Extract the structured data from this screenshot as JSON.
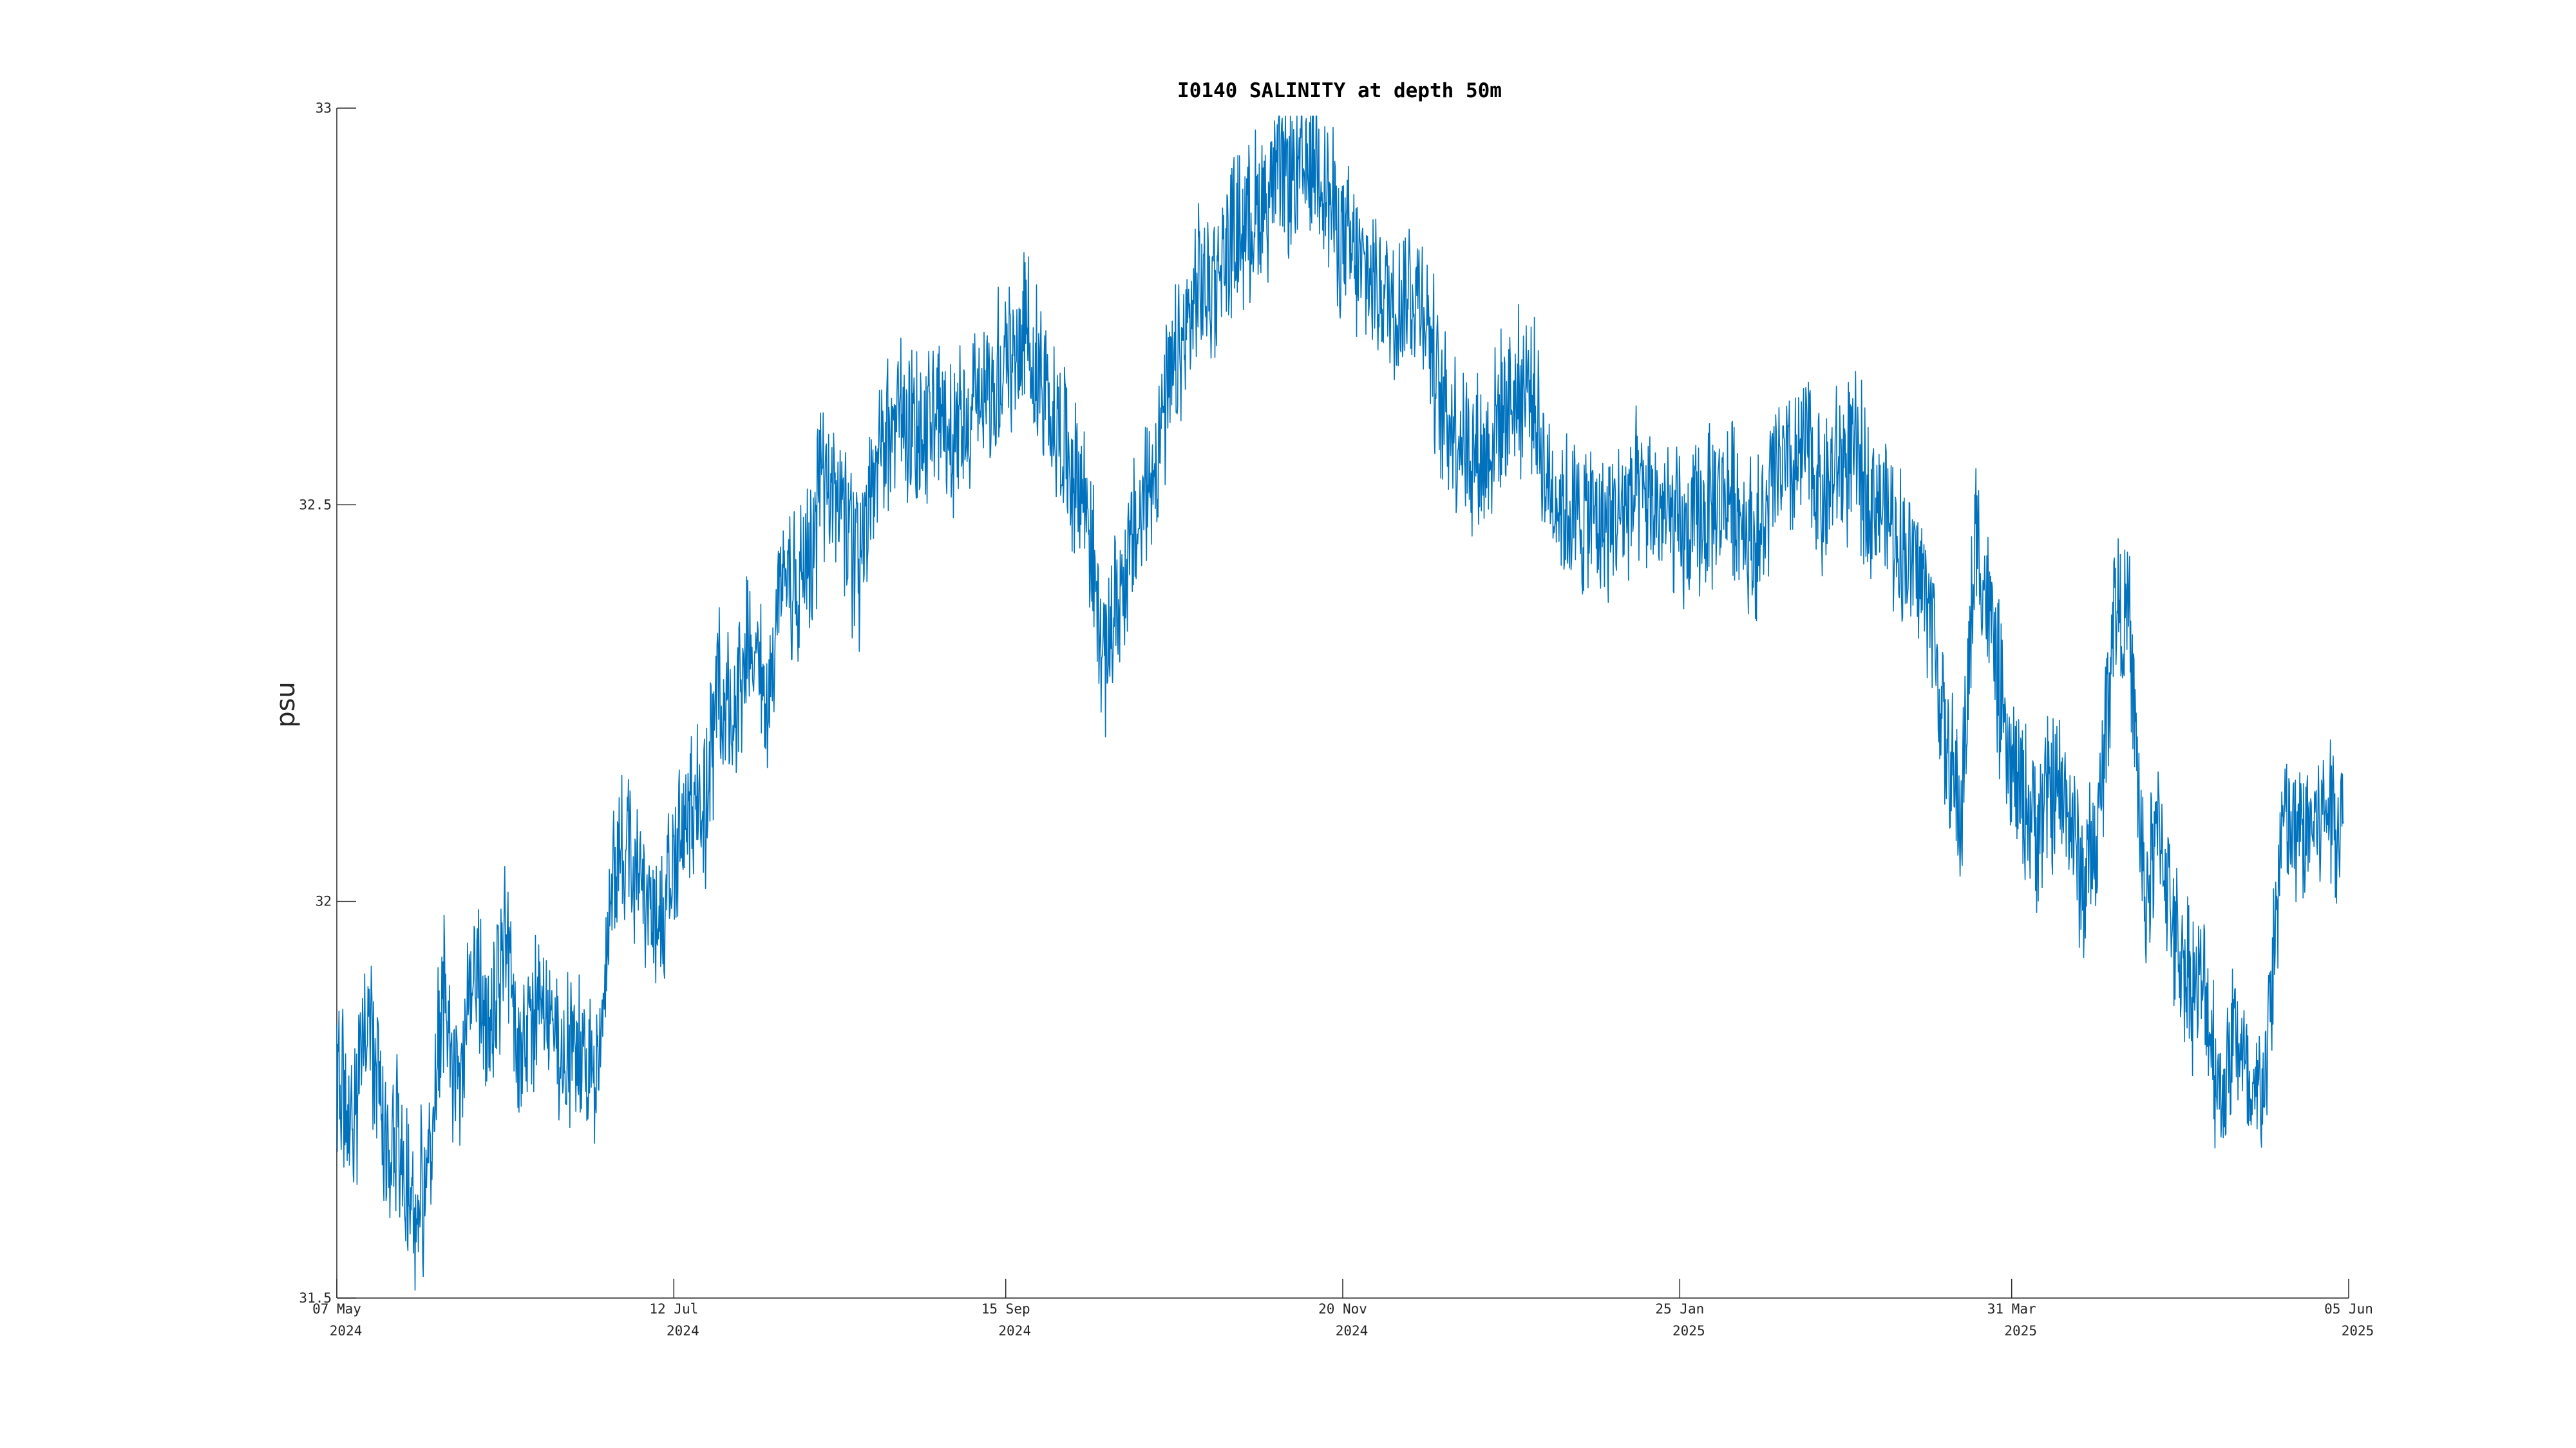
{
  "chart_data": {
    "type": "line",
    "title": "I0140 SALINITY at depth 50m",
    "xlabel": "",
    "ylabel": "psu",
    "xlim": [
      "2024-05-07",
      "2025-06-05"
    ],
    "ylim": [
      31.5,
      33
    ],
    "grid": false,
    "legend": "none",
    "y_ticks": [
      {
        "value": 31.5,
        "label": "31.5"
      },
      {
        "value": 32,
        "label": "32"
      },
      {
        "value": 32.5,
        "label": "32.5"
      },
      {
        "value": 33,
        "label": "33"
      }
    ],
    "x_ticks": [
      {
        "date": "2024-05-07",
        "line1": "07 May",
        "line2": "2024"
      },
      {
        "date": "2024-07-12",
        "line1": "12 Jul",
        "line2": "2024"
      },
      {
        "date": "2024-09-15",
        "line1": "15 Sep",
        "line2": "2024"
      },
      {
        "date": "2024-11-20",
        "line1": "20 Nov",
        "line2": "2024"
      },
      {
        "date": "2025-01-25",
        "line1": "25 Jan",
        "line2": "2025"
      },
      {
        "date": "2025-03-31",
        "line1": "31 Mar",
        "line2": "2025"
      },
      {
        "date": "2025-06-05",
        "line1": "05 Jun",
        "line2": "2025"
      }
    ],
    "series": [
      {
        "color": "#0072BD",
        "x": [
          "2024-05-07",
          "2024-05-10",
          "2024-05-13",
          "2024-05-16",
          "2024-05-19",
          "2024-05-22",
          "2024-05-25",
          "2024-05-28",
          "2024-05-31",
          "2024-06-03",
          "2024-06-06",
          "2024-06-09",
          "2024-06-12",
          "2024-06-15",
          "2024-06-18",
          "2024-06-21",
          "2024-06-24",
          "2024-06-27",
          "2024-06-30",
          "2024-07-03",
          "2024-07-06",
          "2024-07-09",
          "2024-07-12",
          "2024-07-15",
          "2024-07-18",
          "2024-07-21",
          "2024-07-24",
          "2024-07-27",
          "2024-07-30",
          "2024-08-02",
          "2024-08-05",
          "2024-08-08",
          "2024-08-11",
          "2024-08-14",
          "2024-08-17",
          "2024-08-20",
          "2024-08-23",
          "2024-08-26",
          "2024-08-29",
          "2024-09-01",
          "2024-09-04",
          "2024-09-07",
          "2024-09-10",
          "2024-09-13",
          "2024-09-16",
          "2024-09-19",
          "2024-09-22",
          "2024-09-25",
          "2024-09-28",
          "2024-10-01",
          "2024-10-04",
          "2024-10-07",
          "2024-10-10",
          "2024-10-13",
          "2024-10-16",
          "2024-10-19",
          "2024-10-22",
          "2024-10-25",
          "2024-10-28",
          "2024-10-31",
          "2024-11-03",
          "2024-11-06",
          "2024-11-09",
          "2024-11-12",
          "2024-11-15",
          "2024-11-18",
          "2024-11-21",
          "2024-11-24",
          "2024-11-27",
          "2024-11-30",
          "2024-12-03",
          "2024-12-06",
          "2024-12-09",
          "2024-12-12",
          "2024-12-15",
          "2024-12-18",
          "2024-12-21",
          "2024-12-24",
          "2024-12-27",
          "2024-12-30",
          "2025-01-02",
          "2025-01-05",
          "2025-01-08",
          "2025-01-11",
          "2025-01-14",
          "2025-01-17",
          "2025-01-20",
          "2025-01-23",
          "2025-01-26",
          "2025-01-29",
          "2025-02-01",
          "2025-02-04",
          "2025-02-07",
          "2025-02-10",
          "2025-02-13",
          "2025-02-16",
          "2025-02-19",
          "2025-02-22",
          "2025-02-25",
          "2025-02-28",
          "2025-03-03",
          "2025-03-06",
          "2025-03-09",
          "2025-03-12",
          "2025-03-15",
          "2025-03-18",
          "2025-03-21",
          "2025-03-24",
          "2025-03-27",
          "2025-03-30",
          "2025-04-02",
          "2025-04-05",
          "2025-04-08",
          "2025-04-11",
          "2025-04-14",
          "2025-04-17",
          "2025-04-20",
          "2025-04-23",
          "2025-04-26",
          "2025-04-29",
          "2025-05-02",
          "2025-05-05",
          "2025-05-08",
          "2025-05-11",
          "2025-05-14",
          "2025-05-17",
          "2025-05-20",
          "2025-05-23",
          "2025-05-26",
          "2025-05-29",
          "2025-06-01",
          "2025-06-04"
        ],
        "y": [
          31.8,
          31.7,
          31.85,
          31.72,
          31.69,
          31.6,
          31.66,
          31.9,
          31.75,
          31.93,
          31.82,
          31.95,
          31.8,
          31.88,
          31.84,
          31.79,
          31.82,
          31.75,
          32.05,
          32.08,
          32.02,
          31.94,
          32.07,
          32.11,
          32.1,
          32.28,
          32.22,
          32.35,
          32.24,
          32.4,
          32.38,
          32.45,
          32.55,
          32.48,
          32.42,
          32.52,
          32.59,
          32.62,
          32.58,
          32.62,
          32.57,
          32.62,
          32.64,
          32.66,
          32.68,
          32.72,
          32.65,
          32.6,
          32.55,
          32.5,
          32.3,
          32.38,
          32.45,
          32.52,
          32.62,
          32.68,
          32.76,
          32.78,
          32.82,
          32.85,
          32.87,
          32.9,
          32.92,
          32.91,
          32.95,
          32.87,
          32.82,
          32.79,
          32.78,
          32.75,
          32.77,
          32.76,
          32.63,
          32.6,
          32.57,
          32.56,
          32.62,
          32.64,
          32.65,
          32.53,
          32.5,
          32.48,
          32.49,
          32.47,
          32.5,
          32.51,
          32.5,
          32.48,
          32.45,
          32.48,
          32.5,
          32.52,
          32.47,
          32.45,
          32.55,
          32.53,
          32.58,
          32.5,
          32.55,
          32.56,
          32.52,
          32.5,
          32.45,
          32.42,
          32.38,
          32.2,
          32.1,
          32.46,
          32.35,
          32.18,
          32.13,
          32.1,
          32.14,
          32.12,
          32.02,
          32.08,
          32.38,
          32.35,
          32.0,
          32.1,
          31.95,
          31.9,
          31.88,
          31.75,
          31.85,
          31.72,
          31.8,
          32.1,
          32.08,
          32.1,
          32.12,
          32.1
        ]
      }
    ]
  }
}
